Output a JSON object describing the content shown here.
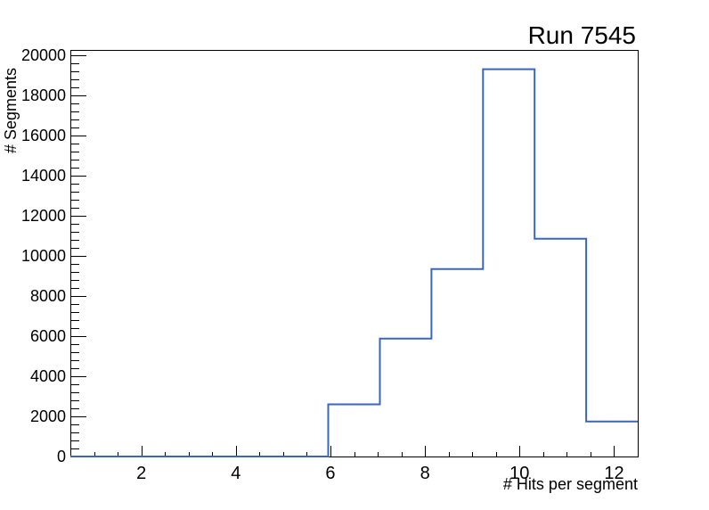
{
  "chart_data": {
    "type": "bar",
    "style": "step-histogram",
    "title": "Run 7545",
    "xlabel": "# Hits per segment",
    "ylabel": "# Segments",
    "xlim": [
      0.5,
      12.5
    ],
    "ylim": [
      0,
      20250
    ],
    "bin_edges": [
      0.5,
      1.5909,
      2.6818,
      3.7727,
      4.8636,
      5.9545,
      7.0455,
      8.1364,
      9.2273,
      10.3182,
      11.4091,
      12.5
    ],
    "values": [
      0,
      0,
      0,
      0,
      0,
      2600,
      5870,
      9340,
      19290,
      10850,
      1740
    ],
    "x_ticks_major": [
      2,
      4,
      6,
      8,
      10,
      12
    ],
    "x_tick_labels": [
      "2",
      "4",
      "6",
      "8",
      "10",
      "12"
    ],
    "x_tick_minor_start": 1.0,
    "x_tick_minor_step": 0.5,
    "y_ticks_major": [
      0,
      2000,
      4000,
      6000,
      8000,
      10000,
      12000,
      14000,
      16000,
      18000,
      20000
    ],
    "y_tick_labels": [
      "0",
      "2000",
      "4000",
      "6000",
      "8000",
      "10000",
      "12000",
      "14000",
      "16000",
      "18000",
      "20000"
    ],
    "y_tick_minor_step": 400,
    "grid": false,
    "legend": false,
    "line_color": "#3a66bd",
    "axis_color": "#000000",
    "background_color": "#ffffff"
  }
}
